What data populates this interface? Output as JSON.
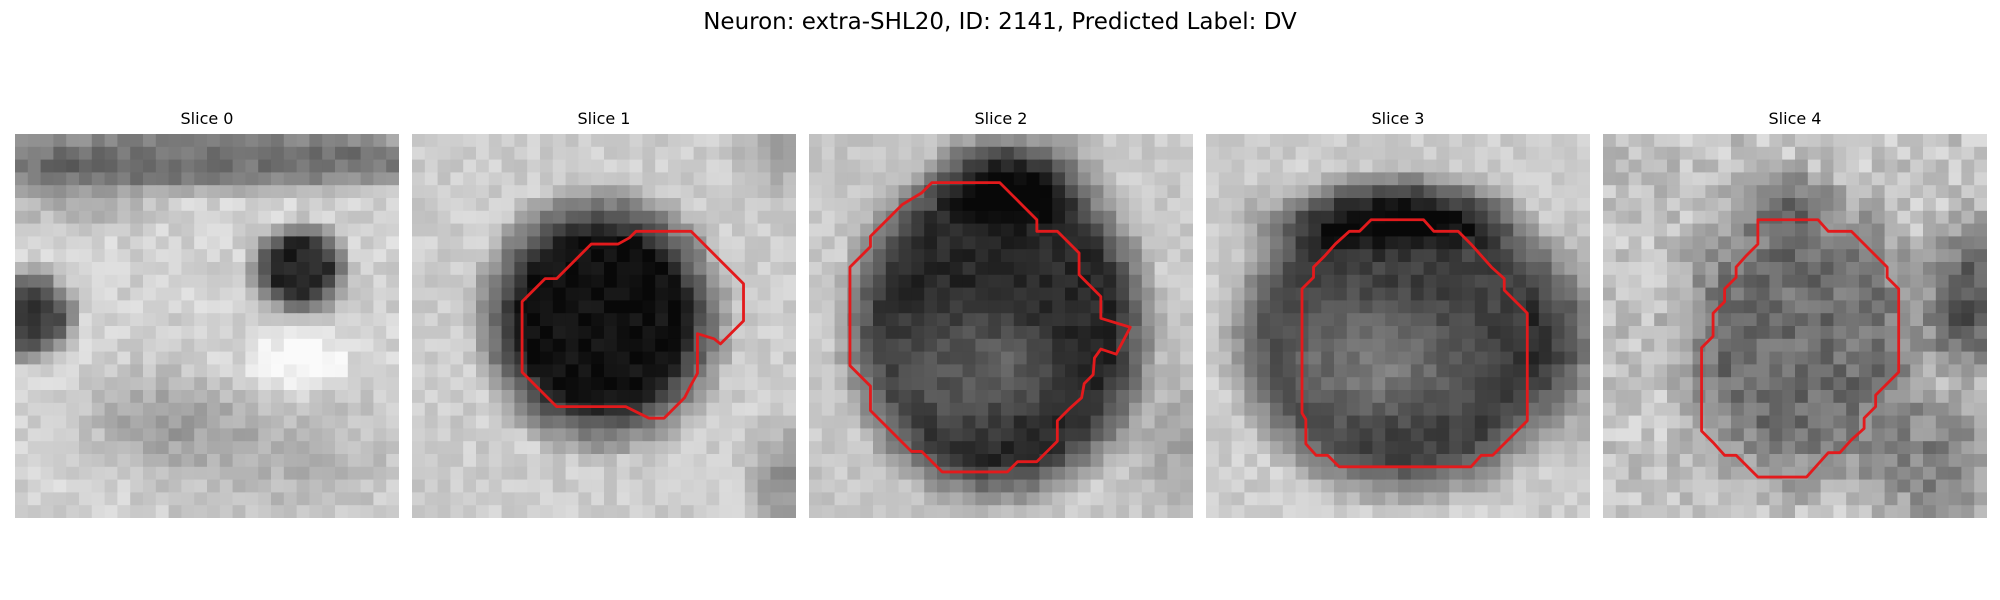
{
  "figure": {
    "title": "Neuron: extra-SHL20, ID: 2141, Predicted Label: DV"
  },
  "panels": [
    {
      "title": "Slice 0"
    },
    {
      "title": "Slice 1"
    },
    {
      "title": "Slice 2"
    },
    {
      "title": "Slice 3"
    },
    {
      "title": "Slice 4"
    }
  ],
  "colors": {
    "contour": "#e31a1c",
    "background": "#ffffff"
  }
}
